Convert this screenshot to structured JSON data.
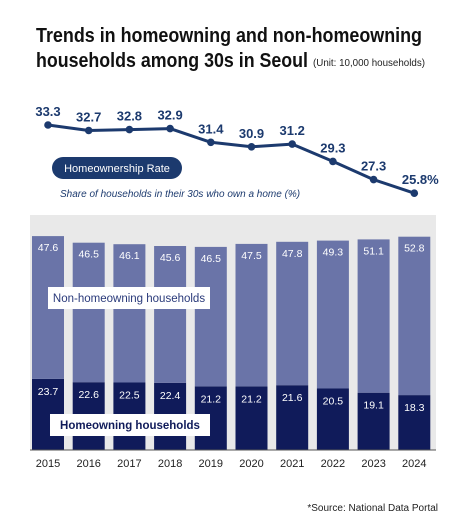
{
  "chart_data": {
    "type": "bar",
    "title_line1": "Trends in homeowning and non-homeowning",
    "title_line2": "households among 30s in Seoul",
    "unit_note": "(Unit: 10,000 households)",
    "categories": [
      "2015",
      "2016",
      "2017",
      "2018",
      "2019",
      "2020",
      "2021",
      "2022",
      "2023",
      "2024"
    ],
    "stacked": true,
    "series": [
      {
        "name": "Homeowning households",
        "values": [
          23.7,
          22.6,
          22.5,
          22.4,
          21.2,
          21.2,
          21.6,
          20.5,
          19.1,
          18.3
        ],
        "color": "#101b5a"
      },
      {
        "name": "Non-homeowning households",
        "values": [
          47.6,
          46.5,
          46.1,
          45.6,
          46.5,
          47.5,
          47.8,
          49.3,
          51.1,
          52.8
        ],
        "color": "#6a74a8"
      }
    ],
    "line_series": {
      "name": "Homeownership Rate",
      "description": "Share of households in their 30s who own a home (%)",
      "labels": [
        "33.3",
        "32.7",
        "32.8",
        "32.9",
        "31.4",
        "30.9",
        "31.2",
        "29.3",
        "27.3",
        "25.8%"
      ],
      "values": [
        33.3,
        32.7,
        32.8,
        32.9,
        31.4,
        30.9,
        31.2,
        29.3,
        27.3,
        25.8
      ],
      "color": "#1c3a6e"
    },
    "ylim_bars": [
      0,
      76
    ],
    "grid": false,
    "background_panel_color": "#e9e9e9",
    "source": "*Source: National Data Portal"
  }
}
